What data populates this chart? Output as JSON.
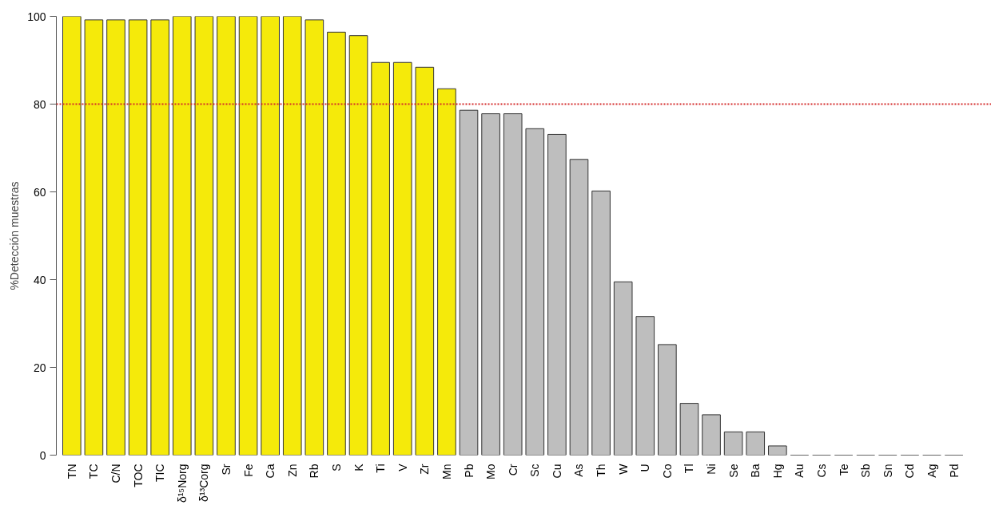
{
  "chart_data": {
    "type": "bar",
    "ylabel": "%Detección muestras",
    "categories": [
      "TN",
      "TC",
      "C/N",
      "TOC",
      "TIC",
      "δ¹⁵Norg",
      "δ¹³Corg",
      "Sr",
      "Fe",
      "Ca",
      "Zn",
      "Rb",
      "S",
      "K",
      "Ti",
      "V",
      "Zr",
      "Mn",
      "Pb",
      "Mo",
      "Cr",
      "Sc",
      "Cu",
      "As",
      "Th",
      "W",
      "U",
      "Co",
      "Tl",
      "Ni",
      "Se",
      "Ba",
      "Hg",
      "Au",
      "Cs",
      "Te",
      "Sb",
      "Sn",
      "Cd",
      "Ag",
      "Pd"
    ],
    "values": [
      100,
      99.2,
      99.2,
      99.2,
      99.2,
      100,
      100,
      100,
      100,
      100,
      100,
      99.2,
      96.4,
      95.6,
      89.5,
      89.5,
      88.4,
      83.5,
      78.6,
      77.8,
      77.8,
      74.4,
      73.1,
      67.4,
      60.2,
      39.5,
      31.6,
      25.2,
      11.8,
      9.2,
      5.3,
      5.3,
      2.1,
      0,
      0,
      0,
      0,
      0,
      0,
      0,
      0
    ],
    "colors": [
      "#f5ea0a",
      "#f5ea0a",
      "#f5ea0a",
      "#f5ea0a",
      "#f5ea0a",
      "#f5ea0a",
      "#f5ea0a",
      "#f5ea0a",
      "#f5ea0a",
      "#f5ea0a",
      "#f5ea0a",
      "#f5ea0a",
      "#f5ea0a",
      "#f5ea0a",
      "#f5ea0a",
      "#f5ea0a",
      "#f5ea0a",
      "#f5ea0a",
      "#bebebe",
      "#bebebe",
      "#bebebe",
      "#bebebe",
      "#bebebe",
      "#bebebe",
      "#bebebe",
      "#bebebe",
      "#bebebe",
      "#bebebe",
      "#bebebe",
      "#bebebe",
      "#bebebe",
      "#bebebe",
      "#bebebe",
      "#333333",
      "#333333",
      "#333333",
      "#333333",
      "#333333",
      "#333333",
      "#333333",
      "#333333"
    ],
    "ylim": [
      0,
      100
    ],
    "yticks": [
      0,
      20,
      40,
      60,
      80,
      100
    ],
    "grid": false,
    "ref_lines": [
      {
        "axis": "y",
        "value": 80,
        "color": "#d42a2a",
        "line_style": "dotted"
      }
    ]
  }
}
